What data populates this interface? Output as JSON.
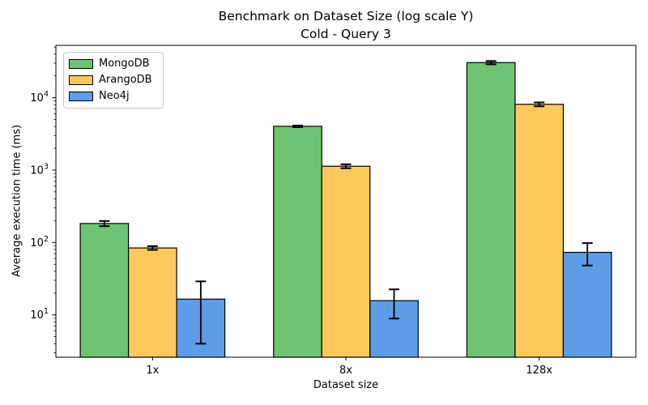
{
  "figure": {
    "title_line1": "Benchmark on Dataset Size (log scale Y)",
    "title_line2": "Cold - Query 3",
    "xlabel": "Dataset size",
    "ylabel": "Average execution time (ms)",
    "background_color": "#ffffff",
    "spine_color": "#000000"
  },
  "chart_data": {
    "type": "bar",
    "title": "Benchmark on Dataset Size (log scale Y)",
    "subtitle": "Cold - Query 3",
    "xlabel": "Dataset size",
    "ylabel": "Average execution time (ms)",
    "yscale": "log",
    "ylim": [
      2.6,
      52800
    ],
    "y_major_tick_exponents": [
      1,
      2,
      3,
      4
    ],
    "grid": false,
    "legend_position": "upper left",
    "categories": [
      "1x",
      "8x",
      "128x"
    ],
    "series": [
      {
        "name": "MongoDB",
        "color": "#6ec472",
        "edge_color": "#000000",
        "values": [
          183,
          4020,
          30500
        ],
        "errors": [
          15,
          100,
          1600
        ]
      },
      {
        "name": "ArangoDB",
        "color": "#fdc95c",
        "edge_color": "#000000",
        "values": [
          84,
          1130,
          8100
        ],
        "errors": [
          5,
          70,
          500
        ]
      },
      {
        "name": "Neo4j",
        "color": "#5f9ce8",
        "edge_color": "#000000",
        "values": [
          16.5,
          15.7,
          73
        ],
        "errors": [
          12.5,
          6.8,
          25
        ]
      }
    ]
  }
}
